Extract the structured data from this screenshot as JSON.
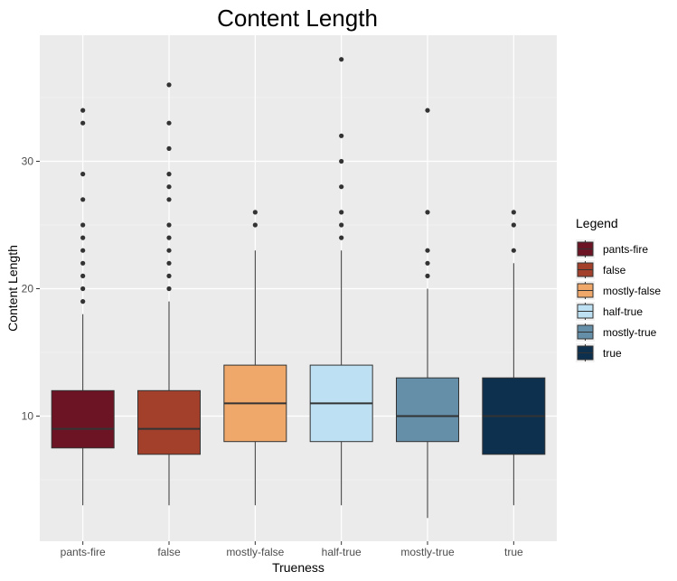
{
  "chart_data": {
    "type": "boxplot",
    "title": "Content Length",
    "xlabel": "Trueness",
    "ylabel": "Content Length",
    "categories": [
      "pants-fire",
      "false",
      "mostly-false",
      "half-true",
      "mostly-true",
      "true"
    ],
    "ylim": [
      0,
      40
    ],
    "yticks": [
      10,
      20,
      30
    ],
    "grid": true,
    "legend_position": "right",
    "legend_title": "Legend",
    "series": [
      {
        "name": "pants-fire",
        "color": "#6d1424",
        "whisker_low": 3,
        "q1": 7.5,
        "median": 9,
        "q3": 12,
        "whisker_high": 18,
        "outliers": [
          19,
          20,
          21,
          22,
          23,
          24,
          25,
          27,
          29,
          33,
          34
        ]
      },
      {
        "name": "false",
        "color": "#a3402b",
        "whisker_low": 3,
        "q1": 7,
        "median": 9,
        "q3": 12,
        "whisker_high": 19,
        "outliers": [
          20,
          21,
          22,
          23,
          24,
          25,
          27,
          28,
          29,
          31,
          33,
          36
        ]
      },
      {
        "name": "mostly-false",
        "color": "#f0a86a",
        "whisker_low": 3,
        "q1": 8,
        "median": 11,
        "q3": 14,
        "whisker_high": 23,
        "outliers": [
          25,
          26
        ]
      },
      {
        "name": "half-true",
        "color": "#bde0f2",
        "whisker_low": 3,
        "q1": 8,
        "median": 11,
        "q3": 14,
        "whisker_high": 23,
        "outliers": [
          24,
          25,
          26,
          28,
          30,
          32,
          38
        ]
      },
      {
        "name": "mostly-true",
        "color": "#658fa9",
        "whisker_low": 2,
        "q1": 8,
        "median": 10,
        "q3": 13,
        "whisker_high": 20,
        "outliers": [
          21,
          22,
          23,
          26,
          34
        ]
      },
      {
        "name": "true",
        "color": "#0d304f",
        "whisker_low": 3,
        "q1": 7,
        "median": 10,
        "q3": 13,
        "whisker_high": 22,
        "outliers": [
          23,
          25,
          26
        ]
      }
    ]
  }
}
